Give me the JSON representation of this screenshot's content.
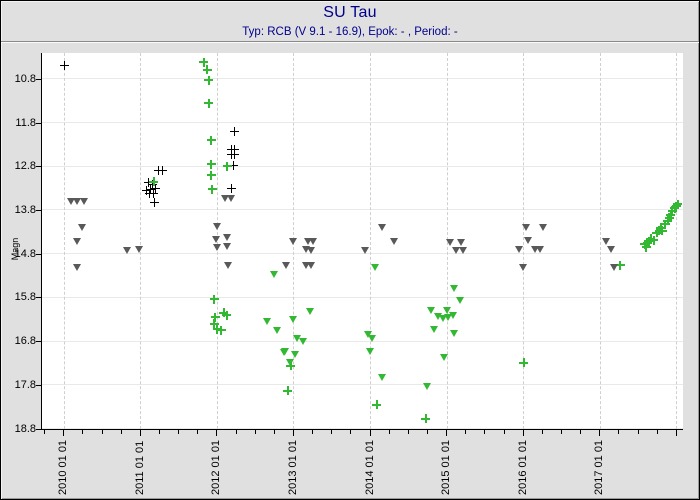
{
  "window": {
    "bg_color": "#e0e0e0",
    "title_color": "#00008b"
  },
  "chart_data": {
    "type": "scatter",
    "title": "SU Tau",
    "subtitle": "Typ: RCB (V 9.1 - 16.9), Epok: - , Period: -",
    "ylabel": "Magn",
    "y_inverted": true,
    "grid": true,
    "legend": "none",
    "x_range": [
      2009.71,
      2018.08
    ],
    "y_range": [
      10.21,
      18.81
    ],
    "x_minor_tick_step": 0.25,
    "x_ticks": [
      {
        "value": 2010,
        "label": "2010 01 01"
      },
      {
        "value": 2011,
        "label": "2011 01 01"
      },
      {
        "value": 2012,
        "label": "2012 01 01"
      },
      {
        "value": 2013,
        "label": "2013 01 01"
      },
      {
        "value": 2014,
        "label": "2014 01 01"
      },
      {
        "value": 2015,
        "label": "2015 01 01"
      },
      {
        "value": 2016,
        "label": "2016 01 01"
      },
      {
        "value": 2017,
        "label": "2017 01 01"
      },
      {
        "value": 2018,
        "label": ""
      }
    ],
    "y_ticks": [
      {
        "value": 10.8,
        "label": "10.8"
      },
      {
        "value": 11.8,
        "label": "11.8"
      },
      {
        "value": 12.8,
        "label": "12.8"
      },
      {
        "value": 13.8,
        "label": "13.8"
      },
      {
        "value": 14.8,
        "label": "14.8"
      },
      {
        "value": 15.8,
        "label": "15.8"
      },
      {
        "value": 16.8,
        "label": "16.8"
      },
      {
        "value": 17.8,
        "label": "17.8"
      },
      {
        "value": 18.8,
        "label": "18.8"
      }
    ],
    "series": [
      {
        "name": "magnitude-measurement-black",
        "marker": "plus",
        "color": "#000000",
        "thick": false,
        "points": [
          [
            2010.01,
            10.49
          ],
          [
            2011.08,
            13.35
          ],
          [
            2011.1,
            13.18
          ],
          [
            2011.11,
            13.42
          ],
          [
            2011.13,
            13.33
          ],
          [
            2011.15,
            13.21
          ],
          [
            2011.17,
            13.42
          ],
          [
            2011.19,
            13.31
          ],
          [
            2011.18,
            13.63
          ],
          [
            2011.23,
            12.89
          ],
          [
            2011.28,
            12.89
          ],
          [
            2012.23,
            12.0
          ],
          [
            2012.18,
            12.41
          ],
          [
            2012.23,
            12.41
          ],
          [
            2012.18,
            12.53
          ],
          [
            2012.23,
            12.53
          ],
          [
            2012.21,
            12.79
          ],
          [
            2012.18,
            13.31
          ]
        ]
      },
      {
        "name": "magnitude-measurement-green",
        "marker": "plus",
        "color": "#33b833",
        "thick": true,
        "points": [
          [
            2011.17,
            13.15
          ],
          [
            2011.82,
            10.42
          ],
          [
            2011.87,
            10.59
          ],
          [
            2011.89,
            10.83
          ],
          [
            2011.89,
            11.36
          ],
          [
            2011.92,
            12.21
          ],
          [
            2011.92,
            12.76
          ],
          [
            2011.92,
            13.01
          ],
          [
            2011.93,
            13.33
          ],
          [
            2012.13,
            12.8
          ],
          [
            2011.96,
            15.84
          ],
          [
            2011.97,
            16.25
          ],
          [
            2011.96,
            16.4
          ],
          [
            2012.0,
            16.53
          ],
          [
            2012.05,
            16.55
          ],
          [
            2012.08,
            16.15
          ],
          [
            2012.12,
            16.21
          ],
          [
            2012.96,
            17.36
          ],
          [
            2012.92,
            17.93
          ],
          [
            2014.08,
            18.25
          ],
          [
            2014.72,
            18.57
          ],
          [
            2016.0,
            17.29
          ],
          [
            2017.26,
            15.07
          ],
          [
            2017.58,
            14.59
          ],
          [
            2017.6,
            14.65
          ],
          [
            2017.62,
            14.55
          ],
          [
            2017.64,
            14.51
          ],
          [
            2017.66,
            14.46
          ],
          [
            2017.7,
            14.49
          ],
          [
            2017.74,
            14.32
          ],
          [
            2017.77,
            14.27
          ],
          [
            2017.79,
            14.21
          ],
          [
            2017.81,
            14.28
          ],
          [
            2017.85,
            14.13
          ],
          [
            2017.88,
            14.05
          ],
          [
            2017.9,
            13.98
          ],
          [
            2017.92,
            13.92
          ],
          [
            2017.94,
            13.82
          ],
          [
            2017.97,
            13.76
          ],
          [
            2017.99,
            13.71
          ],
          [
            2018.01,
            13.67
          ]
        ]
      },
      {
        "name": "fainter-than-limit-gray",
        "marker": "triangle-down",
        "color": "#595959",
        "thick": false,
        "points": [
          [
            2010.1,
            13.61
          ],
          [
            2010.18,
            13.61
          ],
          [
            2010.27,
            13.61
          ],
          [
            2010.24,
            14.21
          ],
          [
            2010.18,
            14.51
          ],
          [
            2010.17,
            15.12
          ],
          [
            2010.83,
            14.72
          ],
          [
            2010.98,
            14.7
          ],
          [
            2012.11,
            13.54
          ],
          [
            2012.19,
            13.54
          ],
          [
            2012.0,
            14.18
          ],
          [
            2011.99,
            14.47
          ],
          [
            2012.13,
            14.44
          ],
          [
            2012.0,
            14.66
          ],
          [
            2012.13,
            14.64
          ],
          [
            2012.15,
            15.08
          ],
          [
            2013.0,
            14.53
          ],
          [
            2013.19,
            14.51
          ],
          [
            2013.25,
            14.51
          ],
          [
            2013.16,
            14.7
          ],
          [
            2013.23,
            14.72
          ],
          [
            2012.9,
            15.08
          ],
          [
            2013.16,
            15.08
          ],
          [
            2013.23,
            15.08
          ],
          [
            2013.93,
            14.72
          ],
          [
            2014.15,
            14.21
          ],
          [
            2014.31,
            14.51
          ],
          [
            2015.05,
            14.55
          ],
          [
            2015.19,
            14.55
          ],
          [
            2015.12,
            14.72
          ],
          [
            2015.21,
            14.72
          ],
          [
            2015.95,
            14.7
          ],
          [
            2016.15,
            14.7
          ],
          [
            2016.22,
            14.7
          ],
          [
            2016.04,
            14.21
          ],
          [
            2016.26,
            14.21
          ],
          [
            2016.06,
            14.49
          ],
          [
            2016.0,
            15.12
          ],
          [
            2017.08,
            14.51
          ],
          [
            2017.14,
            14.7
          ],
          [
            2017.18,
            15.12
          ]
        ]
      },
      {
        "name": "fainter-than-limit-green",
        "marker": "triangle-down",
        "color": "#33b833",
        "thick": false,
        "points": [
          [
            2012.66,
            16.34
          ],
          [
            2012.79,
            16.55
          ],
          [
            2012.87,
            17.05
          ],
          [
            2012.75,
            15.27
          ],
          [
            2013.22,
            16.13
          ],
          [
            2013.0,
            16.3
          ],
          [
            2013.05,
            16.73
          ],
          [
            2013.13,
            16.8
          ],
          [
            2012.89,
            17.03
          ],
          [
            2013.02,
            17.1
          ],
          [
            2012.96,
            17.28
          ],
          [
            2014.06,
            15.12
          ],
          [
            2013.97,
            16.64
          ],
          [
            2014.02,
            16.73
          ],
          [
            2014.0,
            17.03
          ],
          [
            2014.15,
            17.64
          ],
          [
            2014.74,
            17.83
          ],
          [
            2014.79,
            16.11
          ],
          [
            2014.89,
            16.24
          ],
          [
            2014.95,
            16.28
          ],
          [
            2015.0,
            16.09
          ],
          [
            2015.02,
            16.25
          ],
          [
            2015.08,
            16.22
          ],
          [
            2014.83,
            16.53
          ],
          [
            2015.1,
            16.63
          ],
          [
            2014.97,
            17.18
          ],
          [
            2015.09,
            15.59
          ],
          [
            2015.17,
            15.88
          ]
        ]
      }
    ]
  }
}
